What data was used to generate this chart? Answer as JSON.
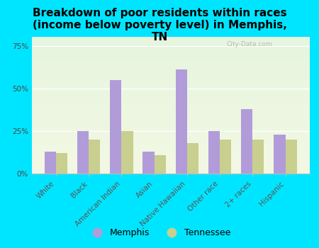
{
  "title": "Breakdown of poor residents within races\n(income below poverty level) in Memphis,\nTN",
  "categories": [
    "White",
    "Black",
    "American Indian",
    "Asian",
    "Native Hawaiian",
    "Other race",
    "2+ races",
    "Hispanic"
  ],
  "memphis_values": [
    13,
    25,
    55,
    13,
    61,
    25,
    38,
    23
  ],
  "tennessee_values": [
    12,
    20,
    25,
    11,
    18,
    20,
    20,
    20
  ],
  "memphis_color": "#b19cd9",
  "tennessee_color": "#c8cf8f",
  "background_color": "#00e5ff",
  "bar_width": 0.35,
  "ylim": [
    0,
    80
  ],
  "yticks": [
    0,
    25,
    50,
    75
  ],
  "ytick_labels": [
    "0%",
    "25%",
    "50%",
    "75%"
  ],
  "watermark": "City-Data.com",
  "legend_memphis": "Memphis",
  "legend_tennessee": "Tennessee",
  "title_fontsize": 11,
  "tick_fontsize": 7.5,
  "legend_fontsize": 9
}
